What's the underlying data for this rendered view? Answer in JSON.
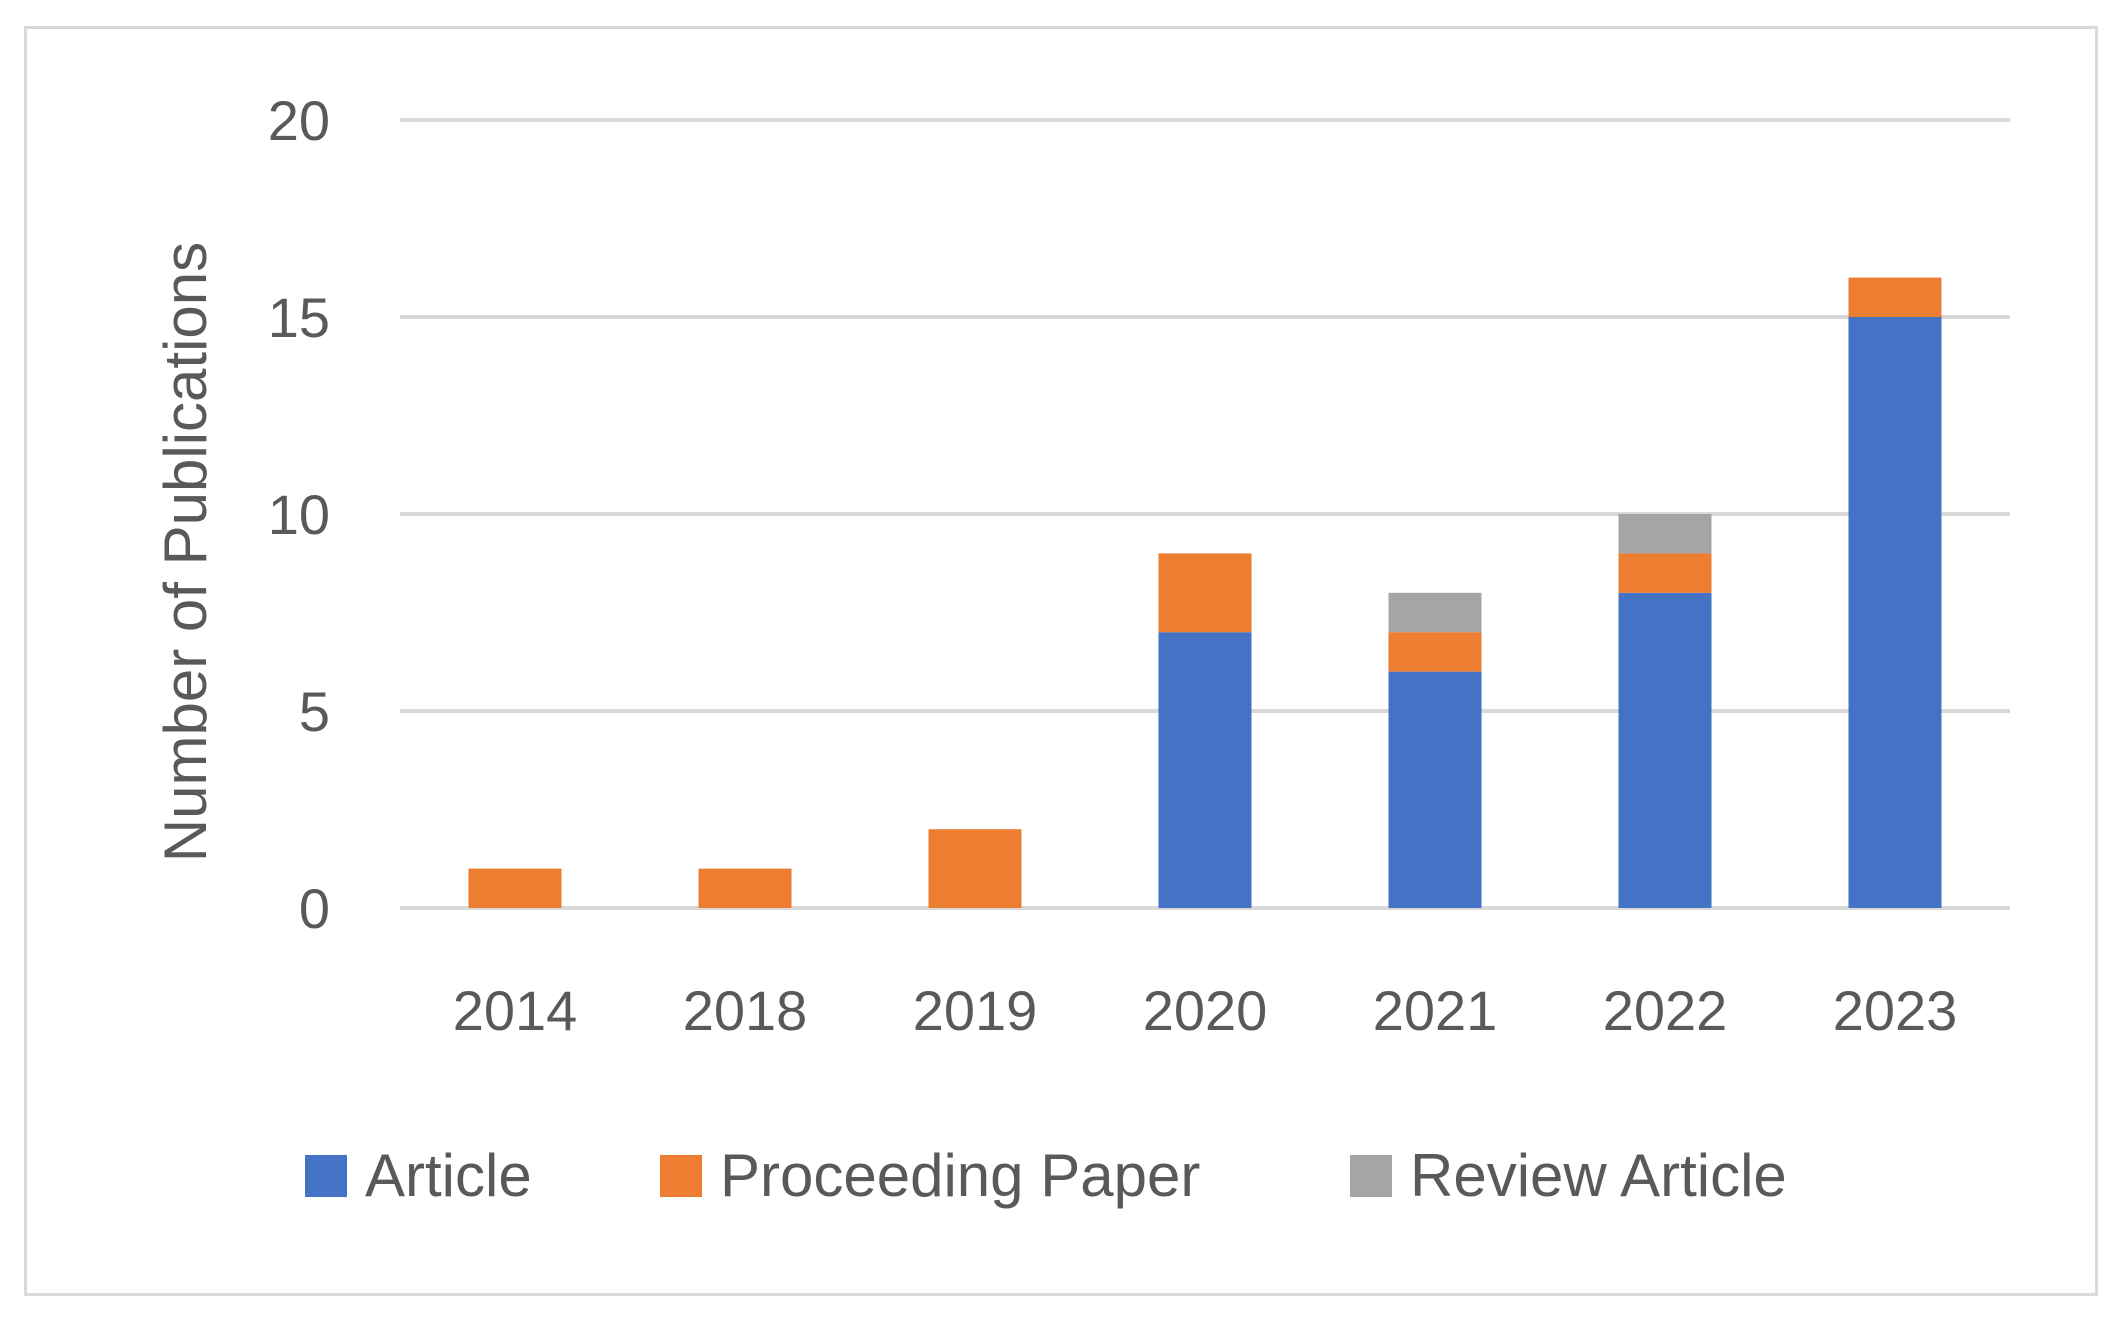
{
  "chart_data": {
    "type": "bar",
    "stacked": true,
    "title": "",
    "xlabel": "",
    "ylabel": "Number of Publications",
    "categories": [
      "2014",
      "2018",
      "2019",
      "2020",
      "2021",
      "2022",
      "2023"
    ],
    "series": [
      {
        "name": "Article",
        "color": "#4472C4",
        "values": [
          0,
          0,
          0,
          7,
          6,
          8,
          15
        ]
      },
      {
        "name": "Proceeding Paper",
        "color": "#ED7D31",
        "values": [
          1,
          1,
          2,
          2,
          1,
          1,
          1
        ]
      },
      {
        "name": "Review Article",
        "color": "#A5A5A5",
        "values": [
          0,
          0,
          0,
          0,
          1,
          1,
          0
        ]
      }
    ],
    "ylim": [
      0,
      20
    ],
    "yticks": [
      0,
      5,
      10,
      15,
      20
    ],
    "grid": true,
    "legend_position": "bottom"
  }
}
